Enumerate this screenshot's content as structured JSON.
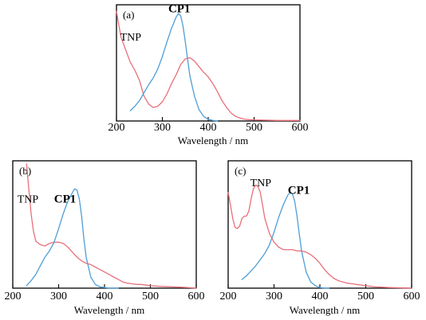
{
  "colors": {
    "TNP": "#e8707a",
    "CP1": "#4f9ed6"
  },
  "chart_data": [
    {
      "type": "line",
      "panel_label": "(a)",
      "xlabel": "Wavelength / nm",
      "ylabel": "",
      "xlim": [
        200,
        600
      ],
      "ylim": [
        0,
        1
      ],
      "xticks": [
        "200",
        "300",
        "400",
        "500",
        "600"
      ],
      "annotations": [
        {
          "text": "TNP",
          "x": 208,
          "y": 0.71,
          "bold": false
        },
        {
          "text": "CP1",
          "x": 313,
          "y": 0.96,
          "bold": true
        }
      ],
      "series": [
        {
          "name": "TNP",
          "color": "#e8707a",
          "x": [
            200,
            205,
            210,
            220,
            230,
            240,
            250,
            260,
            270,
            280,
            290,
            300,
            310,
            320,
            330,
            340,
            350,
            360,
            370,
            380,
            390,
            400,
            410,
            420,
            430,
            440,
            450,
            460,
            470,
            480,
            500,
            550,
            600
          ],
          "y": [
            0.97,
            0.85,
            0.74,
            0.63,
            0.52,
            0.45,
            0.36,
            0.22,
            0.15,
            0.12,
            0.13,
            0.17,
            0.24,
            0.33,
            0.41,
            0.5,
            0.55,
            0.56,
            0.53,
            0.48,
            0.43,
            0.39,
            0.33,
            0.26,
            0.18,
            0.12,
            0.07,
            0.04,
            0.025,
            0.015,
            0.01,
            0.005,
            0.005
          ]
        },
        {
          "name": "CP1",
          "color": "#4f9ed6",
          "x": [
            230,
            240,
            250,
            260,
            270,
            280,
            290,
            300,
            310,
            320,
            330,
            335,
            340,
            345,
            350,
            355,
            360,
            370,
            380,
            390,
            400,
            410,
            420
          ],
          "y": [
            0.09,
            0.13,
            0.18,
            0.25,
            0.32,
            0.38,
            0.46,
            0.57,
            0.7,
            0.82,
            0.92,
            0.95,
            0.93,
            0.84,
            0.7,
            0.55,
            0.4,
            0.22,
            0.1,
            0.04,
            0.015,
            0.005,
            0.0
          ]
        }
      ]
    },
    {
      "type": "line",
      "panel_label": "(b)",
      "xlabel": "Wavelength / nm",
      "ylabel": "",
      "xlim": [
        200,
        600
      ],
      "ylim": [
        0,
        1
      ],
      "xticks": [
        "200",
        "300",
        "400",
        "500",
        "600"
      ],
      "annotations": [
        {
          "text": "TNP",
          "x": 210,
          "y": 0.69,
          "bold": false
        },
        {
          "text": "CP1",
          "x": 290,
          "y": 0.69,
          "bold": true
        }
      ],
      "series": [
        {
          "name": "TNP",
          "color": "#e8707a",
          "x": [
            230,
            235,
            240,
            245,
            250,
            260,
            270,
            280,
            290,
            300,
            310,
            320,
            330,
            340,
            350,
            360,
            370,
            380,
            390,
            400,
            410,
            420,
            430,
            440,
            450,
            460,
            470,
            480,
            500,
            520,
            550,
            580,
            600
          ],
          "y": [
            1.0,
            0.8,
            0.6,
            0.46,
            0.38,
            0.35,
            0.34,
            0.36,
            0.37,
            0.37,
            0.36,
            0.33,
            0.29,
            0.25,
            0.22,
            0.2,
            0.19,
            0.17,
            0.15,
            0.13,
            0.11,
            0.09,
            0.07,
            0.05,
            0.04,
            0.035,
            0.03,
            0.03,
            0.02,
            0.015,
            0.01,
            0.005,
            0.0
          ]
        },
        {
          "name": "CP1",
          "color": "#4f9ed6",
          "x": [
            230,
            240,
            250,
            260,
            270,
            280,
            290,
            300,
            310,
            320,
            330,
            335,
            340,
            345,
            350,
            355,
            360,
            370,
            380,
            390,
            400,
            410,
            420,
            430
          ],
          "y": [
            0.02,
            0.06,
            0.11,
            0.18,
            0.25,
            0.3,
            0.37,
            0.48,
            0.6,
            0.7,
            0.77,
            0.8,
            0.79,
            0.72,
            0.58,
            0.4,
            0.25,
            0.09,
            0.03,
            0.01,
            0.005,
            0.0,
            0.0,
            0.0
          ]
        }
      ]
    },
    {
      "type": "line",
      "panel_label": "(c)",
      "xlabel": "Wavelength / nm",
      "ylabel": "",
      "xlim": [
        200,
        600
      ],
      "ylim": [
        0,
        1
      ],
      "xticks": [
        "200",
        "300",
        "400",
        "500",
        "600"
      ],
      "annotations": [
        {
          "text": "TNP",
          "x": 248,
          "y": 0.82,
          "bold": false
        },
        {
          "text": "CP1",
          "x": 330,
          "y": 0.76,
          "bold": true
        }
      ],
      "series": [
        {
          "name": "TNP",
          "color": "#e8707a",
          "x": [
            200,
            205,
            210,
            215,
            220,
            225,
            230,
            235,
            240,
            245,
            250,
            255,
            260,
            265,
            270,
            275,
            280,
            290,
            300,
            310,
            320,
            330,
            340,
            350,
            360,
            370,
            380,
            390,
            400,
            410,
            420,
            430,
            440,
            450,
            460,
            470,
            480,
            500,
            520,
            550,
            600
          ],
          "y": [
            0.77,
            0.67,
            0.56,
            0.49,
            0.48,
            0.5,
            0.56,
            0.58,
            0.58,
            0.62,
            0.72,
            0.8,
            0.83,
            0.82,
            0.77,
            0.67,
            0.56,
            0.44,
            0.37,
            0.33,
            0.31,
            0.31,
            0.31,
            0.3,
            0.3,
            0.29,
            0.27,
            0.24,
            0.2,
            0.15,
            0.11,
            0.08,
            0.06,
            0.05,
            0.04,
            0.035,
            0.03,
            0.02,
            0.01,
            0.005,
            0.0
          ]
        },
        {
          "name": "CP1",
          "color": "#4f9ed6",
          "x": [
            230,
            240,
            250,
            260,
            270,
            280,
            290,
            300,
            310,
            320,
            330,
            335,
            340,
            345,
            350,
            355,
            360,
            370,
            380,
            390,
            400,
            410,
            420
          ],
          "y": [
            0.07,
            0.1,
            0.14,
            0.18,
            0.23,
            0.28,
            0.35,
            0.45,
            0.57,
            0.67,
            0.75,
            0.77,
            0.76,
            0.7,
            0.58,
            0.44,
            0.3,
            0.13,
            0.05,
            0.02,
            0.005,
            0.0,
            0.0
          ]
        }
      ]
    }
  ]
}
